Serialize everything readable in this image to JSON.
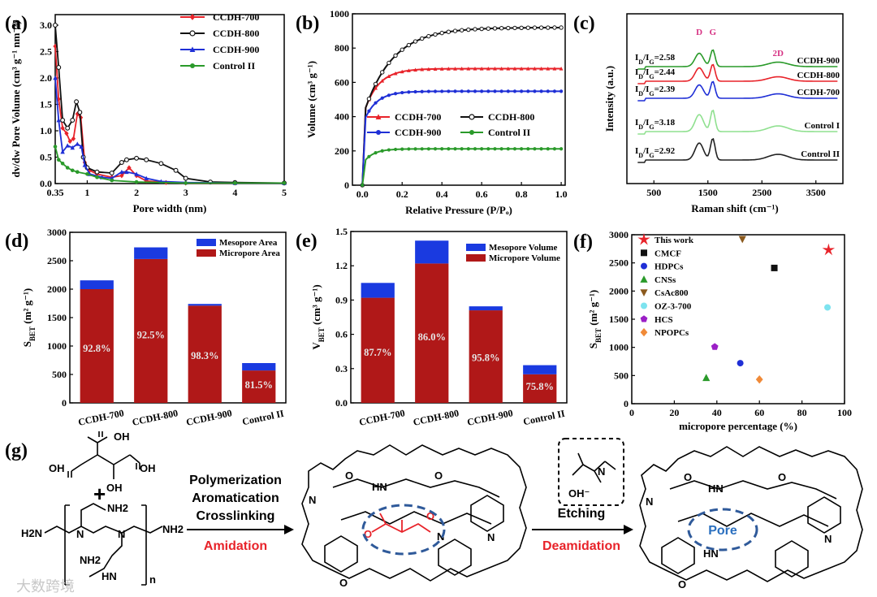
{
  "chart_data": [
    {
      "panel": "(a)",
      "type": "line",
      "xlabel": "Pore width (nm)",
      "ylabel": "dv/dw Pore Volume (cm³ g⁻¹ nm⁻¹)",
      "xlim": [
        0.35,
        5
      ],
      "ylim": [
        0,
        3.2
      ],
      "xticks": [
        "0.35",
        "1",
        "2",
        "3",
        "4",
        "5"
      ],
      "yticks": [
        "0.0",
        "0.5",
        "1.0",
        "1.5",
        "2.0",
        "2.5",
        "3.0"
      ],
      "series": [
        {
          "name": "CCDH-700",
          "color": "#e8232a",
          "points": [
            [
              0.35,
              2.6
            ],
            [
              0.42,
              1.6
            ],
            [
              0.5,
              1.05
            ],
            [
              0.58,
              0.95
            ],
            [
              0.65,
              0.8
            ],
            [
              0.72,
              0.85
            ],
            [
              0.8,
              1.32
            ],
            [
              0.87,
              1.25
            ],
            [
              0.95,
              0.4
            ],
            [
              1.05,
              0.25
            ],
            [
              1.2,
              0.18
            ],
            [
              1.5,
              0.12
            ],
            [
              1.7,
              0.15
            ],
            [
              1.85,
              0.3
            ],
            [
              2.0,
              0.15
            ],
            [
              2.2,
              0.05
            ],
            [
              2.6,
              0.02
            ],
            [
              3,
              0.01
            ],
            [
              4,
              0.01
            ],
            [
              5,
              0.01
            ]
          ]
        },
        {
          "name": "CCDH-800",
          "color": "#111111",
          "points": [
            [
              0.35,
              3.0
            ],
            [
              0.42,
              2.2
            ],
            [
              0.5,
              1.2
            ],
            [
              0.6,
              1.05
            ],
            [
              0.7,
              1.2
            ],
            [
              0.78,
              1.55
            ],
            [
              0.85,
              1.35
            ],
            [
              0.92,
              0.5
            ],
            [
              1.0,
              0.3
            ],
            [
              1.2,
              0.22
            ],
            [
              1.5,
              0.2
            ],
            [
              1.7,
              0.4
            ],
            [
              1.8,
              0.45
            ],
            [
              2.0,
              0.48
            ],
            [
              2.2,
              0.45
            ],
            [
              2.5,
              0.38
            ],
            [
              2.8,
              0.25
            ],
            [
              3.0,
              0.1
            ],
            [
              3.5,
              0.03
            ],
            [
              4,
              0.02
            ],
            [
              5,
              0.01
            ]
          ]
        },
        {
          "name": "CCDH-900",
          "color": "#1f2fd6",
          "points": [
            [
              0.35,
              2.0
            ],
            [
              0.42,
              1.2
            ],
            [
              0.5,
              0.6
            ],
            [
              0.6,
              0.72
            ],
            [
              0.7,
              0.68
            ],
            [
              0.8,
              0.75
            ],
            [
              0.88,
              0.7
            ],
            [
              0.95,
              0.35
            ],
            [
              1.05,
              0.18
            ],
            [
              1.3,
              0.12
            ],
            [
              1.5,
              0.1
            ],
            [
              1.7,
              0.22
            ],
            [
              1.8,
              0.22
            ],
            [
              2.0,
              0.18
            ],
            [
              2.2,
              0.1
            ],
            [
              2.5,
              0.04
            ],
            [
              3,
              0.02
            ],
            [
              4,
              0.01
            ],
            [
              5,
              0.01
            ]
          ]
        },
        {
          "name": "Control II",
          "color": "#2a9a2a",
          "points": [
            [
              0.35,
              0.7
            ],
            [
              0.42,
              0.45
            ],
            [
              0.5,
              0.38
            ],
            [
              0.6,
              0.3
            ],
            [
              0.7,
              0.25
            ],
            [
              0.8,
              0.22
            ],
            [
              1.0,
              0.18
            ],
            [
              1.2,
              0.12
            ],
            [
              1.5,
              0.06
            ],
            [
              2.0,
              0.03
            ],
            [
              3,
              0.01
            ],
            [
              4,
              0.01
            ],
            [
              5,
              0.01
            ]
          ]
        }
      ]
    },
    {
      "panel": "(b)",
      "type": "line",
      "xlabel": "Relative Pressure (P/Pₒ)",
      "ylabel": "Volume (cm³ g⁻¹)",
      "xlim": [
        -0.05,
        1.02
      ],
      "ylim": [
        0,
        1000
      ],
      "xticks": [
        "0.0",
        "0.2",
        "0.4",
        "0.6",
        "0.8",
        "1.0"
      ],
      "yticks": [
        "0",
        "200",
        "400",
        "600",
        "800",
        "1000"
      ],
      "series": [
        {
          "name": "CCDH-700",
          "color": "#e8232a",
          "plateau": 680,
          "start": 430,
          "k": 14
        },
        {
          "name": "CCDH-800",
          "color": "#111111",
          "plateau": 920,
          "start": 430,
          "k": 7
        },
        {
          "name": "CCDH-900",
          "color": "#1f2fd6",
          "plateau": 548,
          "start": 380,
          "k": 16
        },
        {
          "name": "Control II",
          "color": "#2a9a2a",
          "plateau": 212,
          "start": 140,
          "k": 20
        }
      ]
    },
    {
      "panel": "(c)",
      "type": "line",
      "xlabel": "Raman shift (cm⁻¹)",
      "ylabel": "Intensity (a.u.)",
      "xlim": [
        0,
        4000
      ],
      "xticks": [
        "500",
        "1500",
        "2500",
        "3500"
      ],
      "peak_labels": [
        "D",
        "G",
        "2D"
      ],
      "series": [
        {
          "name": "CCDH-900",
          "color": "#2a9a2a",
          "ratio": "2.58"
        },
        {
          "name": "CCDH-800",
          "color": "#e8232a",
          "ratio": "2.44"
        },
        {
          "name": "CCDH-700",
          "color": "#1f2fd6",
          "ratio": "2.39"
        },
        {
          "name": "Control I",
          "color": "#8fe08f",
          "ratio": "3.18"
        },
        {
          "name": "Control II",
          "color": "#222222",
          "ratio": "2.92"
        }
      ]
    },
    {
      "panel": "(d)",
      "type": "bar",
      "ylabel": "S_BET (m² g⁻¹)",
      "ylim": [
        0,
        3000
      ],
      "yticks": [
        "0",
        "500",
        "1000",
        "1500",
        "2000",
        "2500",
        "3000"
      ],
      "categories": [
        "CCDH-700",
        "CCDH-800",
        "CCDH-900",
        "Control II"
      ],
      "series": [
        {
          "name": "Micropore Area",
          "color": "#b01818",
          "values": [
            2000,
            2530,
            1710,
            570
          ]
        },
        {
          "name": "Mesopore Area",
          "color": "#1a3ae0",
          "values": [
            155,
            205,
            30,
            130
          ]
        }
      ],
      "labels": [
        "92.8%",
        "92.5%",
        "98.3%",
        "81.5%"
      ]
    },
    {
      "panel": "(e)",
      "type": "bar",
      "ylabel": "V_BET (cm³ g⁻¹)",
      "ylim": [
        0,
        1.5
      ],
      "yticks": [
        "0.0",
        "0.3",
        "0.6",
        "0.9",
        "1.2",
        "1.5"
      ],
      "categories": [
        "CCDH-700",
        "CCDH-800",
        "CCDH-900",
        "Control II"
      ],
      "series": [
        {
          "name": "Micropore Volume",
          "color": "#b01818",
          "values": [
            0.92,
            1.22,
            0.81,
            0.25
          ]
        },
        {
          "name": "Mesopore Volume",
          "color": "#1a3ae0",
          "values": [
            0.13,
            0.2,
            0.035,
            0.08
          ]
        }
      ],
      "labels": [
        "87.7%",
        "86.0%",
        "95.8%",
        "75.8%"
      ]
    },
    {
      "panel": "(f)",
      "type": "scatter",
      "xlabel": "micropore percentage (%)",
      "ylabel": "S_BET (m² g⁻¹)",
      "xlim": [
        0,
        100
      ],
      "ylim": [
        0,
        3000
      ],
      "xticks": [
        "0",
        "20",
        "40",
        "60",
        "80",
        "100"
      ],
      "yticks": [
        "0",
        "500",
        "1000",
        "1500",
        "2000",
        "2500",
        "3000"
      ],
      "points": [
        {
          "name": "This work",
          "color": "#e8232a",
          "marker": "star",
          "x": 92.5,
          "y": 2730
        },
        {
          "name": "CMCF",
          "color": "#111111",
          "marker": "square",
          "x": 67,
          "y": 2410
        },
        {
          "name": "HDPCs",
          "color": "#1f2fd6",
          "marker": "circle",
          "x": 51,
          "y": 720
        },
        {
          "name": "CNSs",
          "color": "#2a9a2a",
          "marker": "triangle",
          "x": 35,
          "y": 460
        },
        {
          "name": "CsAc800",
          "color": "#8b5a1e",
          "marker": "triangle-down",
          "x": 52,
          "y": 2920
        },
        {
          "name": "OZ-3-700",
          "color": "#7de3ef",
          "marker": "circle",
          "x": 92,
          "y": 1710
        },
        {
          "name": "HCS",
          "color": "#9b1fc6",
          "marker": "pentagon",
          "x": 39,
          "y": 1010
        },
        {
          "name": "NPOPCs",
          "color": "#f08a38",
          "marker": "diamond",
          "x": 60,
          "y": 430
        }
      ]
    }
  ],
  "panels": {
    "a": "(a)",
    "b": "(b)",
    "c": "(c)",
    "d": "(d)",
    "e": "(e)",
    "f": "(f)",
    "g": "(g)"
  },
  "scheme": {
    "step1_lines": [
      "Polymerization",
      "Aromatication",
      "Crosslinking"
    ],
    "step1_highlight": "Amidation",
    "etching_label": "Etching",
    "step2_highlight": "Deamidation",
    "pore_label": "Pore",
    "chem": {
      "oh": "OH",
      "nh2": "NH2",
      "h2n": "H2N",
      "hn": "HN",
      "n": "N",
      "o": "O",
      "plus": "+",
      "sub_n": "n",
      "hydroxide": "OH⁻"
    }
  },
  "watermark": "大数跨境"
}
